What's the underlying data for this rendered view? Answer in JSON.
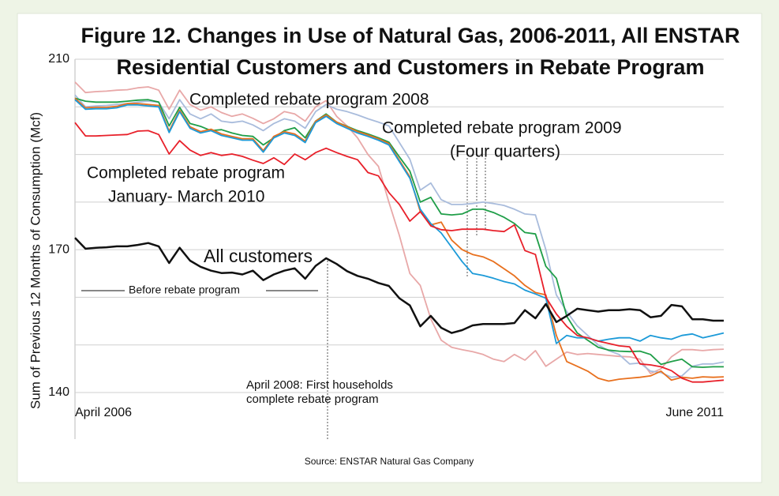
{
  "chart_data": {
    "type": "line",
    "title": [
      "Figure 12. Changes in Use of Natural Gas, 2006-2011, All ENSTAR",
      "Residential Customers and Customers in Rebate Program"
    ],
    "y_label": "Sum of Previous 12 Months of Consumption (Mcf)",
    "source": "Source: ENSTAR Natural Gas Company",
    "annotations": [
      "Completed rebate program 2008",
      "Completed rebate program 2009",
      "(Four quarters)",
      "Completed rebate program",
      "January- March 2010",
      "All customers",
      "Before rebate program",
      "April 2008: First  households",
      "complete rebate program"
    ],
    "categories": [
      "April 2006",
      null,
      null,
      null,
      null,
      null,
      null,
      null,
      null,
      null,
      null,
      null,
      null,
      null,
      null,
      null,
      null,
      null,
      null,
      null,
      null,
      null,
      null,
      null,
      null,
      null,
      null,
      null,
      null,
      null,
      null,
      null,
      null,
      null,
      null,
      null,
      null,
      null,
      null,
      null,
      null,
      null,
      null,
      null,
      null,
      null,
      null,
      null,
      null,
      null,
      null,
      null,
      null,
      null,
      null,
      null,
      null,
      null,
      null,
      null,
      null,
      null,
      "June 2011"
    ],
    "ylim": [
      140,
      210
    ],
    "yticks": [
      140,
      170,
      210
    ],
    "ygrid": [
      140,
      150,
      160,
      170,
      180,
      190,
      200,
      210
    ],
    "grid": true,
    "series": [
      {
        "color": "#e8a8a8",
        "values": [
          205.2,
          203.0,
          203.2,
          203.3,
          203.5,
          203.6,
          204.0,
          204.2,
          203.5,
          199.5,
          203.5,
          200.5,
          199.3,
          200.0,
          198.8,
          198.0,
          198.5,
          197.6,
          196.5,
          197.5,
          199.0,
          198.5,
          197.0,
          200.0,
          201.3,
          198.0,
          196.0,
          193.5,
          190.0,
          187.5,
          180.0,
          173.0,
          165.0,
          162.5,
          155.5,
          151.0,
          149.5,
          149.0,
          148.6,
          148.0,
          147.0,
          146.5,
          148.0,
          146.8,
          148.8,
          145.5,
          147.0,
          148.5,
          148.0,
          148.2,
          148.0,
          147.8,
          147.6,
          147.5,
          147.0,
          144.0,
          145.0,
          147.5,
          149.0,
          149.0,
          148.8,
          149.0,
          149.1
        ]
      },
      {
        "color": "#a9bcdc",
        "values": [
          202.5,
          200.0,
          200.2,
          200.3,
          200.5,
          200.7,
          201.0,
          201.2,
          201.0,
          197.5,
          201.5,
          198.5,
          197.5,
          198.5,
          197.0,
          196.7,
          197.0,
          196.2,
          195.0,
          196.5,
          197.5,
          197.0,
          195.5,
          199.0,
          200.5,
          199.5,
          199.0,
          198.3,
          197.5,
          196.8,
          196.0,
          192.5,
          189.0,
          182.5,
          184.0,
          180.5,
          179.5,
          179.5,
          179.7,
          180.0,
          179.7,
          179.3,
          178.5,
          177.5,
          177.3,
          170.0,
          160.5,
          157.0,
          154.0,
          152.0,
          150.0,
          148.8,
          148.0,
          146.0,
          146.2,
          144.5,
          144.2,
          143.2,
          143.5,
          145.5,
          146.0,
          146.0,
          146.4
        ]
      },
      {
        "color": "#1f9e48",
        "values": [
          201.8,
          201.2,
          201.0,
          201.0,
          201.0,
          201.2,
          201.4,
          201.5,
          201.0,
          196.0,
          199.9,
          196.5,
          195.9,
          195.0,
          195.2,
          194.5,
          194.0,
          193.8,
          192.0,
          193.5,
          195.0,
          195.6,
          193.5,
          197.0,
          198.5,
          196.8,
          195.9,
          195.0,
          194.3,
          193.5,
          192.6,
          189.5,
          186.5,
          180.0,
          181.0,
          177.5,
          177.3,
          177.5,
          178.5,
          178.5,
          177.8,
          176.8,
          175.5,
          173.6,
          173.3,
          166.5,
          164.0,
          156.0,
          152.5,
          151.0,
          149.5,
          148.9,
          148.7,
          148.6,
          148.7,
          148.0,
          145.9,
          146.5,
          147.0,
          145.4,
          145.3,
          145.4,
          145.4
        ]
      },
      {
        "color": "#e8701e",
        "values": [
          201.8,
          199.8,
          199.9,
          199.9,
          200.1,
          200.7,
          200.7,
          200.5,
          200.3,
          194.9,
          199.3,
          195.8,
          194.8,
          195.3,
          194.3,
          193.8,
          193.3,
          193.3,
          190.8,
          193.8,
          194.8,
          194.3,
          192.8,
          197.0,
          198.3,
          196.8,
          195.8,
          194.8,
          194.1,
          193.3,
          192.3,
          188.8,
          185.3,
          178.0,
          175.2,
          175.8,
          172.0,
          170.0,
          169.0,
          168.5,
          167.5,
          166.0,
          164.5,
          162.5,
          161.0,
          160.5,
          152.0,
          146.5,
          145.5,
          144.5,
          143.0,
          142.4,
          142.8,
          143.0,
          143.2,
          143.5,
          144.5,
          142.6,
          143.2,
          143.0,
          143.3,
          143.2,
          143.3
        ]
      },
      {
        "color": "#1c9ad8",
        "values": [
          201.5,
          199.5,
          199.6,
          199.6,
          199.8,
          200.4,
          200.4,
          200.2,
          200.0,
          194.6,
          199.0,
          195.5,
          194.5,
          195.0,
          194.0,
          193.5,
          193.0,
          193.0,
          190.5,
          193.5,
          194.5,
          194.0,
          192.5,
          196.7,
          198.0,
          196.5,
          195.5,
          194.5,
          193.8,
          193.0,
          192.0,
          188.5,
          185.0,
          178.5,
          175.5,
          173.5,
          170.5,
          167.5,
          165.0,
          164.6,
          164.0,
          163.3,
          162.8,
          161.5,
          160.7,
          159.8,
          150.3,
          152.0,
          151.5,
          151.5,
          150.8,
          151.2,
          151.5,
          151.5,
          150.8,
          152.0,
          151.5,
          151.2,
          152.0,
          152.3,
          151.5,
          152.0,
          152.5
        ]
      },
      {
        "color": "#e8202a",
        "values": [
          196.7,
          193.9,
          193.9,
          194.0,
          194.1,
          194.2,
          194.9,
          195.0,
          194.2,
          190.1,
          192.9,
          190.9,
          189.8,
          190.4,
          189.8,
          190.1,
          189.6,
          188.8,
          188.1,
          189.3,
          187.9,
          190.1,
          188.9,
          190.4,
          191.3,
          190.4,
          189.6,
          188.9,
          186.2,
          185.5,
          182.0,
          179.5,
          176.0,
          178.0,
          175.0,
          174.2,
          174.0,
          174.3,
          174.3,
          174.3,
          174.0,
          173.8,
          175.2,
          169.8,
          169.0,
          160.0,
          156.5,
          153.9,
          152.0,
          151.5,
          150.8,
          150.3,
          149.8,
          149.6,
          146.0,
          145.8,
          145.4,
          144.6,
          143.0,
          142.2,
          142.2,
          142.4,
          142.6
        ]
      },
      {
        "color": "#111111",
        "values": [
          172.5,
          170.2,
          170.4,
          170.5,
          170.7,
          170.7,
          171.0,
          171.4,
          170.7,
          167.2,
          170.4,
          167.7,
          166.4,
          165.6,
          165.1,
          165.2,
          164.8,
          165.6,
          163.6,
          164.8,
          165.6,
          166.1,
          163.9,
          166.6,
          168.2,
          167.0,
          165.5,
          164.5,
          163.9,
          163.0,
          162.4,
          159.8,
          158.3,
          153.9,
          156.1,
          153.6,
          152.5,
          153.1,
          154.1,
          154.4,
          154.4,
          154.4,
          154.6,
          157.3,
          155.6,
          158.6,
          154.8,
          156.1,
          157.6,
          157.3,
          157.0,
          157.3,
          157.3,
          157.5,
          157.3,
          155.8,
          156.1,
          158.4,
          158.1,
          155.4,
          155.4,
          155.1,
          155.1
        ]
      }
    ]
  }
}
